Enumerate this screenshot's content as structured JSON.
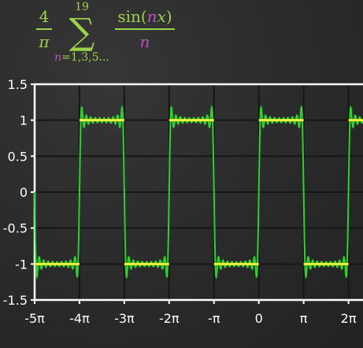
{
  "formula": {
    "coef_num": "4",
    "coef_den": "π",
    "sum_symbol": "∑",
    "upper": "19",
    "lower_var": "n",
    "lower_rest": "=1,3,5...",
    "term_sin": "sin(",
    "term_n": "n",
    "term_x": "x",
    "term_close": ")",
    "term_den": "n"
  },
  "colors": {
    "background": "#2b2b2b",
    "approximation": "#2ed12e",
    "square_wave": "#eef23a",
    "formula_green": "#9bd44a",
    "formula_magenta": "#c04fc6",
    "axis": "#ffffff",
    "grid": "#151515"
  },
  "chart_data": {
    "type": "line",
    "xlim": [
      -15.70796,
      7.3
    ],
    "ylim": [
      -1.5,
      1.5
    ],
    "yticks": [
      1.5,
      1,
      0.5,
      0,
      -0.5,
      -1,
      -1.5
    ],
    "ytick_labels": [
      "1.5",
      "1",
      "0.5",
      "0",
      "-0.5",
      "-1",
      "-1.5"
    ],
    "xticks": [
      -15.70796,
      -12.56637,
      -9.42478,
      -6.28319,
      -3.14159,
      0,
      3.14159,
      6.28319
    ],
    "xtick_labels": [
      "-5π",
      "-4π",
      "-3π",
      "-2π",
      "-π",
      "0",
      "π",
      "2π"
    ],
    "grid": true,
    "series": [
      {
        "kind": "fourier_partial_sum",
        "harmonics": [
          1,
          3,
          5,
          7,
          9,
          11,
          13,
          15,
          17,
          19
        ],
        "coefficient": "4/π",
        "color": "#2ed12e"
      },
      {
        "kind": "square_wave",
        "amplitude": 1,
        "period": 6.28319,
        "color": "#eef23a"
      }
    ]
  }
}
